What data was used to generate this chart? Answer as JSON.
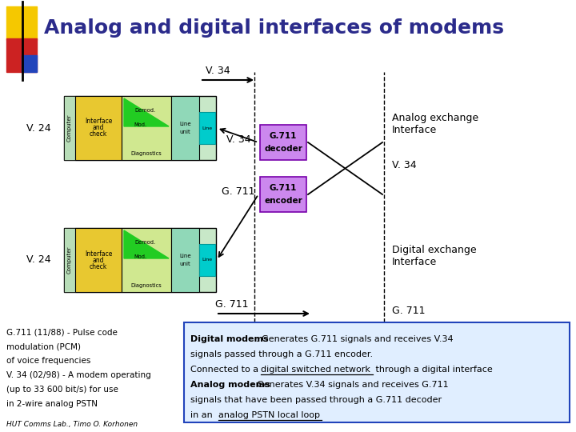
{
  "title": "Analog and digital interfaces of modems",
  "title_color": "#2b2b8b",
  "title_fontsize": 18,
  "bg_color": "#ffffff",
  "v34_label_top": "V. 34",
  "v24_label_top": "V. 24",
  "v24_label_bottom": "V. 24",
  "analog_exchange": "Analog exchange\nInterface",
  "digital_exchange": "Digital exchange\nInterface",
  "g711_decoder": "G.711\ndecoder",
  "g711_encoder": "G.711\nencoder",
  "v34_mid_label": "V. 34",
  "g711_mid_label": "G. 711",
  "g711_bottom_label": "G. 711",
  "g711_right_label": "G. 711",
  "note1_line1": "G.711 (11/88) - Pulse code",
  "note1_line2": "modulation (PCM)",
  "note1_line3": "of voice frequencies",
  "note2_line1": "V. 34 (02/98) - A modem operating",
  "note2_line2": "(up to 33 600 bit/s) for use",
  "note2_line3": "in 2-wire analog PSTN",
  "note3_author": "HUT Comms Lab., Timo O. Korhonen"
}
